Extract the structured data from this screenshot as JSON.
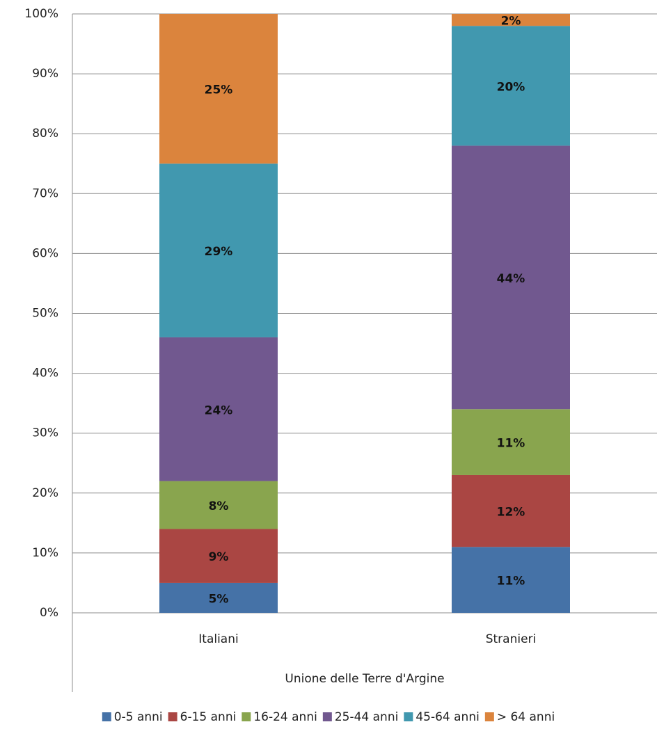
{
  "chart_data": {
    "type": "bar",
    "stacked": true,
    "categories": [
      "Italiani",
      "Stranieri"
    ],
    "xlabel": "Unione delle Terre d'Argine",
    "series": [
      {
        "name": "0-5 anni",
        "color": "#4572a7",
        "values": [
          5,
          11
        ],
        "value_labels": [
          "5%",
          "11%"
        ]
      },
      {
        "name": "6-15 anni",
        "color": "#aa4643",
        "values": [
          9,
          12
        ],
        "value_labels": [
          "9%",
          "12%"
        ]
      },
      {
        "name": "16-24 anni",
        "color": "#89a54e",
        "values": [
          8,
          11
        ],
        "value_labels": [
          "8%",
          "11%"
        ]
      },
      {
        "name": "25-44 anni",
        "color": "#71588f",
        "values": [
          24,
          44
        ],
        "value_labels": [
          "24%",
          "44%"
        ]
      },
      {
        "name": "45-64 anni",
        "color": "#4198af",
        "values": [
          29,
          20
        ],
        "value_labels": [
          "29%",
          "20%"
        ]
      },
      {
        "name": "> 64 anni",
        "color": "#db843d",
        "values": [
          25,
          2
        ],
        "value_labels": [
          "25%",
          "2%"
        ]
      }
    ],
    "ylim": [
      0,
      100
    ],
    "yticks": [
      {
        "value": 0,
        "label": "0%"
      },
      {
        "value": 10,
        "label": "10%"
      },
      {
        "value": 20,
        "label": "20%"
      },
      {
        "value": 30,
        "label": "30%"
      },
      {
        "value": 40,
        "label": "40%"
      },
      {
        "value": 50,
        "label": "50%"
      },
      {
        "value": 60,
        "label": "60%"
      },
      {
        "value": 70,
        "label": "70%"
      },
      {
        "value": 80,
        "label": "80%"
      },
      {
        "value": 90,
        "label": "90%"
      },
      {
        "value": 100,
        "label": "100%"
      }
    ],
    "grid": true,
    "legend": "bottom"
  }
}
